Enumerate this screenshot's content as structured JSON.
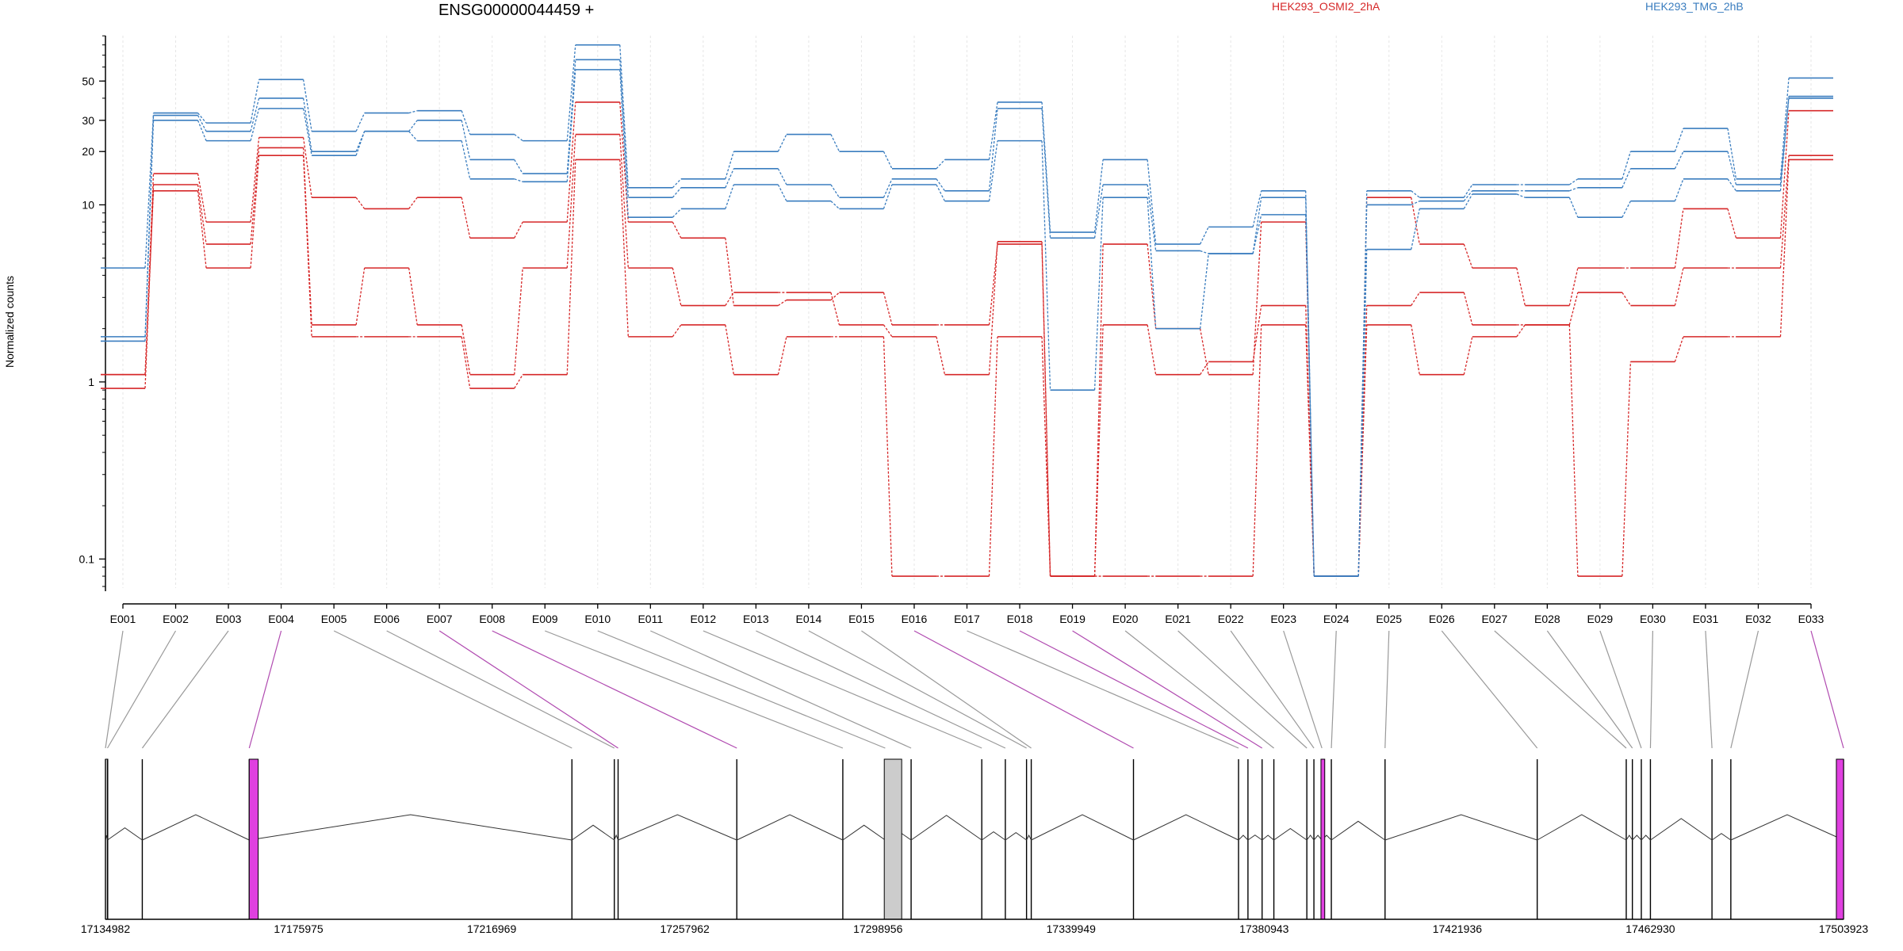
{
  "chart_data": {
    "type": "line",
    "title": "ENSG00000044459 +",
    "ylabel": "Normalized counts",
    "yscale": "log",
    "y_ticks": [
      {
        "value": 0.1,
        "label": "0.1"
      },
      {
        "value": 1,
        "label": "1"
      },
      {
        "value": 10,
        "label": "10"
      },
      {
        "value": 20,
        "label": "20"
      },
      {
        "value": 30,
        "label": "30"
      },
      {
        "value": 50,
        "label": "50"
      }
    ],
    "ylim": [
      0.07,
      100
    ],
    "categories": [
      "E001",
      "E002",
      "E003",
      "E004",
      "E005",
      "E006",
      "E007",
      "E008",
      "E009",
      "E010",
      "E011",
      "E012",
      "E013",
      "E014",
      "E015",
      "E016",
      "E017",
      "E018",
      "E019",
      "E020",
      "E021",
      "E022",
      "E023",
      "E024",
      "E025",
      "E026",
      "E027",
      "E028",
      "E029",
      "E030",
      "E031",
      "E032",
      "E033"
    ],
    "legend_placement": "top",
    "series": [
      {
        "name": "HEK293_OSMI2_2hA",
        "color": "#d62728",
        "values": [
          1.1,
          15,
          8,
          24,
          11,
          9.5,
          11,
          6.5,
          8,
          38,
          8,
          6.5,
          2.7,
          2.9,
          3.2,
          2.1,
          2.1,
          6,
          0.08,
          6,
          2,
          1.1,
          8,
          0.08,
          11,
          6,
          4.4,
          2.7,
          4.4,
          4.4,
          9.5,
          6.5,
          34
        ]
      },
      {
        "name": "",
        "color": "#d62728",
        "values": [
          0.92,
          13,
          6,
          21,
          2.1,
          4.4,
          2.1,
          1.1,
          4.4,
          25,
          4.4,
          2.7,
          3.2,
          3.2,
          2.1,
          1.8,
          1.1,
          6.2,
          0.08,
          2.1,
          1.1,
          1.3,
          2.7,
          0.08,
          2.7,
          3.2,
          2.1,
          2.1,
          3.2,
          2.7,
          4.4,
          4.4,
          19
        ]
      },
      {
        "name": "",
        "color": "#d62728",
        "values": [
          1.1,
          12,
          4.4,
          19,
          1.8,
          1.8,
          1.8,
          0.92,
          1.1,
          18,
          1.8,
          2.1,
          1.1,
          1.8,
          1.8,
          0.08,
          0.08,
          1.8,
          0.08,
          0.08,
          0.08,
          0.08,
          2.1,
          0.08,
          2.1,
          1.1,
          1.8,
          2.1,
          0.08,
          1.3,
          1.8,
          1.8,
          18
        ]
      },
      {
        "name": "HEK293_TMG_2hB",
        "color": "#3a7dbf",
        "values": [
          4.4,
          33,
          29,
          51,
          26,
          33,
          34,
          25,
          23,
          80,
          12.5,
          14,
          20,
          25,
          20,
          16,
          18,
          38,
          7,
          18,
          6,
          7.5,
          12,
          0.08,
          12,
          11,
          13,
          13,
          14,
          20,
          27,
          14,
          52
        ]
      },
      {
        "name": "",
        "color": "#3a7dbf",
        "values": [
          1.8,
          32,
          26,
          40,
          20,
          26,
          30,
          18,
          15,
          66,
          11,
          12.5,
          16,
          13,
          11,
          14,
          12,
          35,
          6.5,
          13,
          5.5,
          5.3,
          11,
          0.08,
          10,
          10.5,
          12,
          12,
          12.5,
          16,
          20,
          13,
          41
        ]
      },
      {
        "name": "",
        "color": "#3a7dbf",
        "values": [
          1.7,
          30,
          23,
          35,
          19,
          26,
          23,
          14,
          13.5,
          58,
          8.5,
          9.5,
          13,
          10.5,
          9.5,
          13,
          10.5,
          23,
          0.9,
          11,
          2,
          5.3,
          8.8,
          0.08,
          5.6,
          9.5,
          11.5,
          11,
          8.5,
          10.5,
          14,
          12,
          40
        ]
      }
    ],
    "exon_lanes": [
      "normal",
      "normal",
      "normal",
      "highlight",
      "normal",
      "normal",
      "highlight",
      "highlight",
      "normal",
      "normal",
      "normal",
      "normal",
      "normal",
      "normal",
      "normal",
      "highlight",
      "normal",
      "highlight",
      "highlight",
      "normal",
      "normal",
      "normal",
      "normal",
      "normal",
      "normal",
      "normal",
      "normal",
      "normal",
      "normal",
      "normal",
      "normal",
      "normal",
      "highlight"
    ],
    "exon_positions": [
      17134982,
      17135400,
      17142800,
      17165500,
      17234000,
      17243000,
      17243800,
      17269000,
      17291500,
      17300500,
      17306000,
      17321000,
      17326000,
      17330500,
      17331500,
      17353200,
      17375500,
      17377500,
      17380500,
      17383000,
      17390000,
      17391500,
      17393200,
      17395200,
      17406600,
      17438900,
      17457800,
      17459100,
      17461000,
      17462930,
      17476000,
      17480000,
      17503923
    ],
    "genome_range": [
      17134982,
      17503923
    ],
    "genome_ticks": [
      {
        "value": 17134982,
        "label": "17134982"
      },
      {
        "value": 17175975,
        "label": "17175975"
      },
      {
        "value": 17216969,
        "label": "17216969"
      },
      {
        "value": 17257962,
        "label": "17257962"
      },
      {
        "value": 17298956,
        "label": "17298956"
      },
      {
        "value": 17339949,
        "label": "17339949"
      },
      {
        "value": 17380943,
        "label": "17380943"
      },
      {
        "value": 17421936,
        "label": "17421936"
      },
      {
        "value": 17462930,
        "label": "17462930"
      },
      {
        "value": 17503923,
        "label": "17503923"
      }
    ],
    "gene_blocks": [
      {
        "start": 17134982,
        "end": 17135400,
        "fill": "none"
      },
      {
        "start": 17165500,
        "end": 17167400,
        "fill": "#e040e0"
      },
      {
        "start": 17300300,
        "end": 17304000,
        "fill": "#cccccc"
      },
      {
        "start": 17393000,
        "end": 17393800,
        "fill": "#e040e0"
      },
      {
        "start": 17502400,
        "end": 17503923,
        "fill": "#e040e0"
      }
    ],
    "colors": {
      "red": "#d62728",
      "blue": "#3a7dbf",
      "link_normal": "#999999",
      "link_highlight": "#b04ab0"
    }
  }
}
